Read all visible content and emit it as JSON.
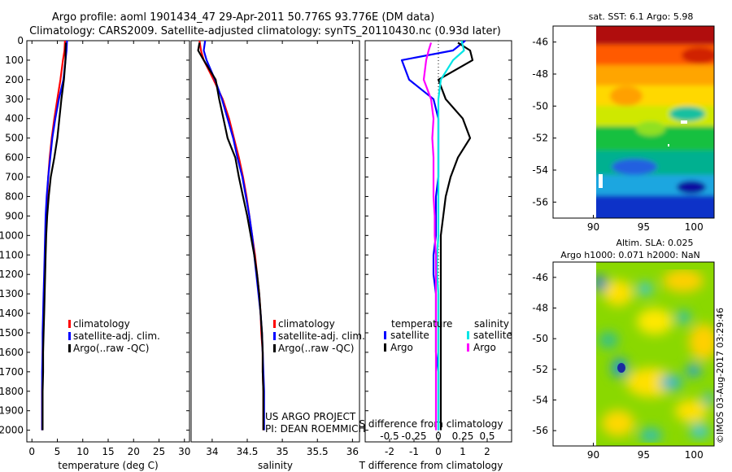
{
  "header": {
    "line1": "Argo profile: aoml 1901434_47 29-Apr-2011 50.776S 93.776E (DM data)",
    "line2": "Climatology: CARS2009. Satellite-adjusted climatology: synTS_20110430.nc (0.93d later)"
  },
  "colors": {
    "climatology": "#ff0000",
    "satellite": "#0000ff",
    "argo": "#000000",
    "sat_salinity": "#00e5e5",
    "argo_salinity": "#ff00ff"
  },
  "footer": {
    "project": "US ARGO PROJECT",
    "pi": "PI: DEAN ROEMMICH"
  },
  "stamp": "©IMOS 03-Aug-2017 03:29:46",
  "legend_profile": [
    "climatology",
    "satellite-adj. clim.",
    "Argo(..raw -QC)"
  ],
  "legend_diff": {
    "temperature_title": "temperature",
    "salinity_title": "salinity",
    "satellite": "satellite",
    "argo": "Argo"
  },
  "chart_data": [
    {
      "type": "line",
      "id": "temperature",
      "xlabel": "temperature (deg C)",
      "ylabel": "",
      "xlim": [
        -1,
        31
      ],
      "ylim": [
        2060,
        0
      ],
      "xticks": [
        0,
        5,
        10,
        15,
        20,
        25,
        30
      ],
      "yticks": [
        0,
        100,
        200,
        300,
        400,
        500,
        600,
        700,
        800,
        900,
        1000,
        1100,
        1200,
        1300,
        1400,
        1500,
        1600,
        1700,
        1800,
        1900,
        2000
      ],
      "series": [
        {
          "name": "climatology",
          "color": "#ff0000",
          "x": [
            6.5,
            6.4,
            6.1,
            5.6,
            5.0,
            4.4,
            3.9,
            3.5,
            3.2,
            3.0,
            2.8,
            2.7,
            2.6,
            2.5,
            2.4,
            2.3,
            2.2,
            2.1,
            2.1,
            2.0,
            2.0
          ],
          "y": [
            0,
            50,
            100,
            200,
            300,
            400,
            500,
            600,
            700,
            800,
            900,
            1000,
            1100,
            1200,
            1300,
            1400,
            1500,
            1600,
            1700,
            1800,
            2000
          ]
        },
        {
          "name": "satellite-adj. clim.",
          "color": "#0000ff",
          "x": [
            6.9,
            6.8,
            6.6,
            6.2,
            5.3,
            4.6,
            4.0,
            3.6,
            3.2,
            2.9,
            2.7,
            2.6,
            2.5,
            2.4,
            2.3,
            2.2,
            2.1,
            2.1,
            2.0,
            2.0,
            2.0
          ],
          "y": [
            0,
            50,
            100,
            200,
            300,
            400,
            500,
            600,
            700,
            800,
            900,
            1000,
            1100,
            1200,
            1300,
            1400,
            1500,
            1600,
            1700,
            1800,
            2000
          ]
        },
        {
          "name": "Argo(..raw -QC)",
          "color": "#000000",
          "x": [
            6.7,
            6.6,
            6.6,
            6.3,
            5.8,
            5.4,
            5.0,
            4.4,
            3.7,
            3.3,
            3.0,
            2.8,
            2.7,
            2.6,
            2.5,
            2.4,
            2.3,
            2.2,
            2.2,
            2.1,
            2.1
          ],
          "y": [
            10,
            50,
            100,
            200,
            300,
            400,
            500,
            600,
            700,
            800,
            900,
            1000,
            1100,
            1200,
            1300,
            1400,
            1500,
            1600,
            1700,
            1800,
            2000
          ]
        }
      ]
    },
    {
      "type": "line",
      "id": "salinity",
      "xlabel": "salinity",
      "ylabel": "",
      "xlim": [
        33.7,
        36.1
      ],
      "ylim": [
        2060,
        0
      ],
      "xticks": [
        34,
        34.5,
        35,
        35.5,
        36
      ],
      "xtick_labels": [
        "34",
        "34.5",
        "35",
        "35.5",
        "36"
      ],
      "series": [
        {
          "name": "climatology",
          "color": "#ff0000",
          "x": [
            33.82,
            33.84,
            33.88,
            34.02,
            34.15,
            34.24,
            34.31,
            34.38,
            34.44,
            34.49,
            34.53,
            34.57,
            34.61,
            34.64,
            34.67,
            34.69,
            34.7,
            34.72,
            34.72,
            34.73,
            34.73
          ],
          "y": [
            0,
            50,
            100,
            200,
            300,
            400,
            500,
            600,
            700,
            800,
            900,
            1000,
            1100,
            1200,
            1300,
            1400,
            1500,
            1600,
            1700,
            1800,
            2000
          ]
        },
        {
          "name": "satellite-adj. clim.",
          "color": "#0000ff",
          "x": [
            33.9,
            33.88,
            33.92,
            34.04,
            34.14,
            34.22,
            34.3,
            34.36,
            34.43,
            34.48,
            34.53,
            34.57,
            34.6,
            34.63,
            34.66,
            34.69,
            34.71,
            34.72,
            34.73,
            34.74,
            34.74
          ],
          "y": [
            0,
            50,
            100,
            200,
            300,
            400,
            500,
            600,
            700,
            800,
            900,
            1000,
            1100,
            1200,
            1300,
            1400,
            1500,
            1600,
            1700,
            1800,
            2000
          ]
        },
        {
          "name": "Argo(..raw -QC)",
          "color": "#000000",
          "x": [
            33.82,
            33.8,
            33.88,
            34.05,
            34.1,
            34.16,
            34.22,
            34.33,
            34.38,
            34.44,
            34.5,
            34.55,
            34.6,
            34.64,
            34.67,
            34.69,
            34.71,
            34.72,
            34.72,
            34.73,
            34.73
          ],
          "y": [
            10,
            50,
            100,
            200,
            300,
            400,
            500,
            600,
            700,
            800,
            900,
            1000,
            1100,
            1200,
            1300,
            1400,
            1500,
            1600,
            1700,
            1800,
            2000
          ]
        }
      ]
    },
    {
      "type": "line",
      "id": "difference",
      "xlabel": "T difference from climatology",
      "xlabel_top": "S difference from climatology",
      "xlim": [
        -3.0,
        3.0
      ],
      "ylim": [
        2060,
        0
      ],
      "xticks": [
        -2,
        -1,
        0,
        1,
        2
      ],
      "xticks_S": [
        -0.5,
        -0.25,
        0,
        0.25,
        0.5
      ],
      "xtick_labels_S": [
        "-0.5",
        "-0.25",
        "0",
        "0.25",
        "0.5"
      ],
      "series": [
        {
          "name": "temperature satellite",
          "color": "#0000ff",
          "x": [
            1.1,
            0.6,
            -1.5,
            -1.2,
            -0.2,
            0.0,
            0.0,
            0.0,
            0.0,
            -0.1,
            -0.1,
            -0.1,
            -0.2,
            -0.2,
            -0.1,
            -0.1,
            -0.1,
            -0.1,
            0.0,
            0.0,
            0.0
          ],
          "y": [
            0,
            50,
            100,
            200,
            300,
            400,
            500,
            600,
            700,
            800,
            900,
            1000,
            1100,
            1200,
            1300,
            1400,
            1500,
            1600,
            1700,
            1800,
            2000
          ]
        },
        {
          "name": "temperature Argo",
          "color": "#000000",
          "x": [
            0.8,
            1.3,
            1.4,
            0.0,
            0.3,
            1.0,
            1.3,
            0.8,
            0.5,
            0.3,
            0.2,
            0.1,
            0.1,
            0.1,
            0.1,
            0.1,
            0.1,
            0.1,
            0.1,
            0.1,
            0.1
          ],
          "y": [
            10,
            50,
            100,
            200,
            300,
            400,
            500,
            600,
            700,
            800,
            900,
            1000,
            1100,
            1200,
            1300,
            1400,
            1500,
            1600,
            1700,
            1800,
            2000
          ]
        },
        {
          "name": "salinity satellite",
          "color": "#00e5e5",
          "x": [
            0.95,
            1.05,
            0.6,
            0.1,
            0.0,
            0.0,
            0.0,
            0.0,
            0.0,
            0.0,
            0.0,
            0.0,
            -0.05,
            -0.05,
            0.0,
            0.0,
            0.0,
            0.0,
            0.0,
            0.0,
            0.0
          ],
          "y": [
            0,
            50,
            100,
            200,
            300,
            400,
            500,
            600,
            700,
            800,
            900,
            1000,
            1100,
            1200,
            1300,
            1400,
            1500,
            1600,
            1700,
            1800,
            2000
          ]
        },
        {
          "name": "salinity Argo",
          "color": "#ff00ff",
          "x": [
            -0.3,
            -0.4,
            -0.5,
            -0.6,
            -0.3,
            -0.2,
            -0.25,
            -0.2,
            -0.2,
            -0.2,
            -0.15,
            -0.15,
            -0.1,
            -0.1,
            -0.1,
            -0.1,
            -0.1,
            -0.1,
            -0.1,
            -0.1,
            -0.1
          ],
          "y": [
            10,
            50,
            100,
            200,
            300,
            400,
            500,
            600,
            700,
            800,
            900,
            1000,
            1100,
            1200,
            1300,
            1400,
            1500,
            1600,
            1700,
            1800,
            2000
          ]
        }
      ]
    },
    {
      "type": "heatmap",
      "id": "sst_map",
      "title": "sat. SST: 6.1 Argo: 5.98",
      "xlim": [
        86,
        102
      ],
      "ylim": [
        -57,
        -45
      ],
      "xticks": [
        90,
        95,
        100
      ],
      "yticks": [
        -46,
        -48,
        -50,
        -52,
        -54,
        -56
      ],
      "data_xlim": [
        90,
        102
      ],
      "marker": {
        "lon": 93.776,
        "lat": -50.776
      }
    },
    {
      "type": "heatmap",
      "id": "sla_map",
      "title": "Altim. SLA: 0.025",
      "subtitle": "Argo h1000: 0.071 h2000: NaN",
      "xlim": [
        86,
        102
      ],
      "ylim": [
        -57,
        -45
      ],
      "xticks": [
        90,
        95,
        100
      ],
      "yticks": [
        -46,
        -48,
        -50,
        -52,
        -54,
        -56
      ],
      "data_xlim": [
        90,
        102
      ],
      "marker": {
        "lon": 93.776,
        "lat": -50.776
      }
    }
  ]
}
